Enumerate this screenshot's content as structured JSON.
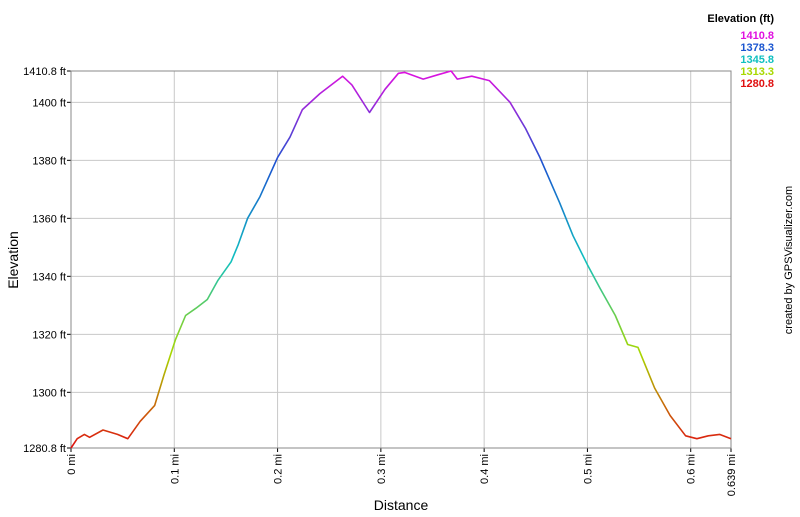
{
  "chart_data": {
    "type": "line",
    "xlabel": "Distance",
    "ylabel": "Elevation",
    "credit": "created by GPSVisualizer.com",
    "grid": true,
    "color_scale": {
      "title": "Elevation (ft)",
      "values": [
        1410.8,
        1378.3,
        1345.8,
        1313.3,
        1280.8
      ],
      "colors": [
        "#e010e0",
        "#1a55d0",
        "#10c0c0",
        "#a8d800",
        "#e01010"
      ]
    },
    "xlim": [
      0,
      0.639
    ],
    "ylim": [
      1280.8,
      1410.8
    ],
    "xticks": [
      {
        "value": 0,
        "label": "0 mi"
      },
      {
        "value": 0.1,
        "label": "0.1 mi"
      },
      {
        "value": 0.2,
        "label": "0.2 mi"
      },
      {
        "value": 0.3,
        "label": "0.3 mi"
      },
      {
        "value": 0.4,
        "label": "0.4 mi"
      },
      {
        "value": 0.5,
        "label": "0.5 mi"
      },
      {
        "value": 0.6,
        "label": "0.6 mi"
      },
      {
        "value": 0.639,
        "label": "0.639 mi"
      }
    ],
    "yticks": [
      {
        "value": 1280.8,
        "label": "1280.8 ft"
      },
      {
        "value": 1300,
        "label": "1300 ft"
      },
      {
        "value": 1320,
        "label": "1320 ft"
      },
      {
        "value": 1340,
        "label": "1340 ft"
      },
      {
        "value": 1360,
        "label": "1360 ft"
      },
      {
        "value": 1380,
        "label": "1380 ft"
      },
      {
        "value": 1400,
        "label": "1400 ft"
      },
      {
        "value": 1410.8,
        "label": "1410.8 ft"
      }
    ],
    "series": [
      {
        "name": "Elevation",
        "x": [
          0,
          0.006,
          0.013,
          0.018,
          0.031,
          0.045,
          0.055,
          0.067,
          0.081,
          0.09,
          0.101,
          0.111,
          0.121,
          0.132,
          0.142,
          0.155,
          0.162,
          0.171,
          0.183,
          0.2,
          0.212,
          0.224,
          0.241,
          0.263,
          0.272,
          0.289,
          0.304,
          0.317,
          0.323,
          0.341,
          0.355,
          0.368,
          0.374,
          0.388,
          0.405,
          0.425,
          0.44,
          0.454,
          0.473,
          0.486,
          0.5,
          0.512,
          0.527,
          0.539,
          0.549,
          0.565,
          0.58,
          0.595,
          0.606,
          0.617,
          0.628,
          0.639
        ],
        "values": [
          1280.8,
          1284,
          1285.5,
          1284.5,
          1287,
          1285.5,
          1284,
          1290,
          1295.5,
          1306,
          1318,
          1326.5,
          1329,
          1332,
          1338.5,
          1345,
          1351,
          1360,
          1367.5,
          1381,
          1388,
          1397.5,
          1403,
          1409,
          1406,
          1396.5,
          1404.5,
          1410,
          1410.3,
          1408,
          1409.5,
          1410.8,
          1408,
          1409,
          1407.5,
          1400,
          1391,
          1381,
          1365.5,
          1354,
          1344,
          1336,
          1326.5,
          1316.5,
          1315.5,
          1301.5,
          1292,
          1285,
          1284,
          1285,
          1285.5,
          1284
        ]
      }
    ]
  }
}
